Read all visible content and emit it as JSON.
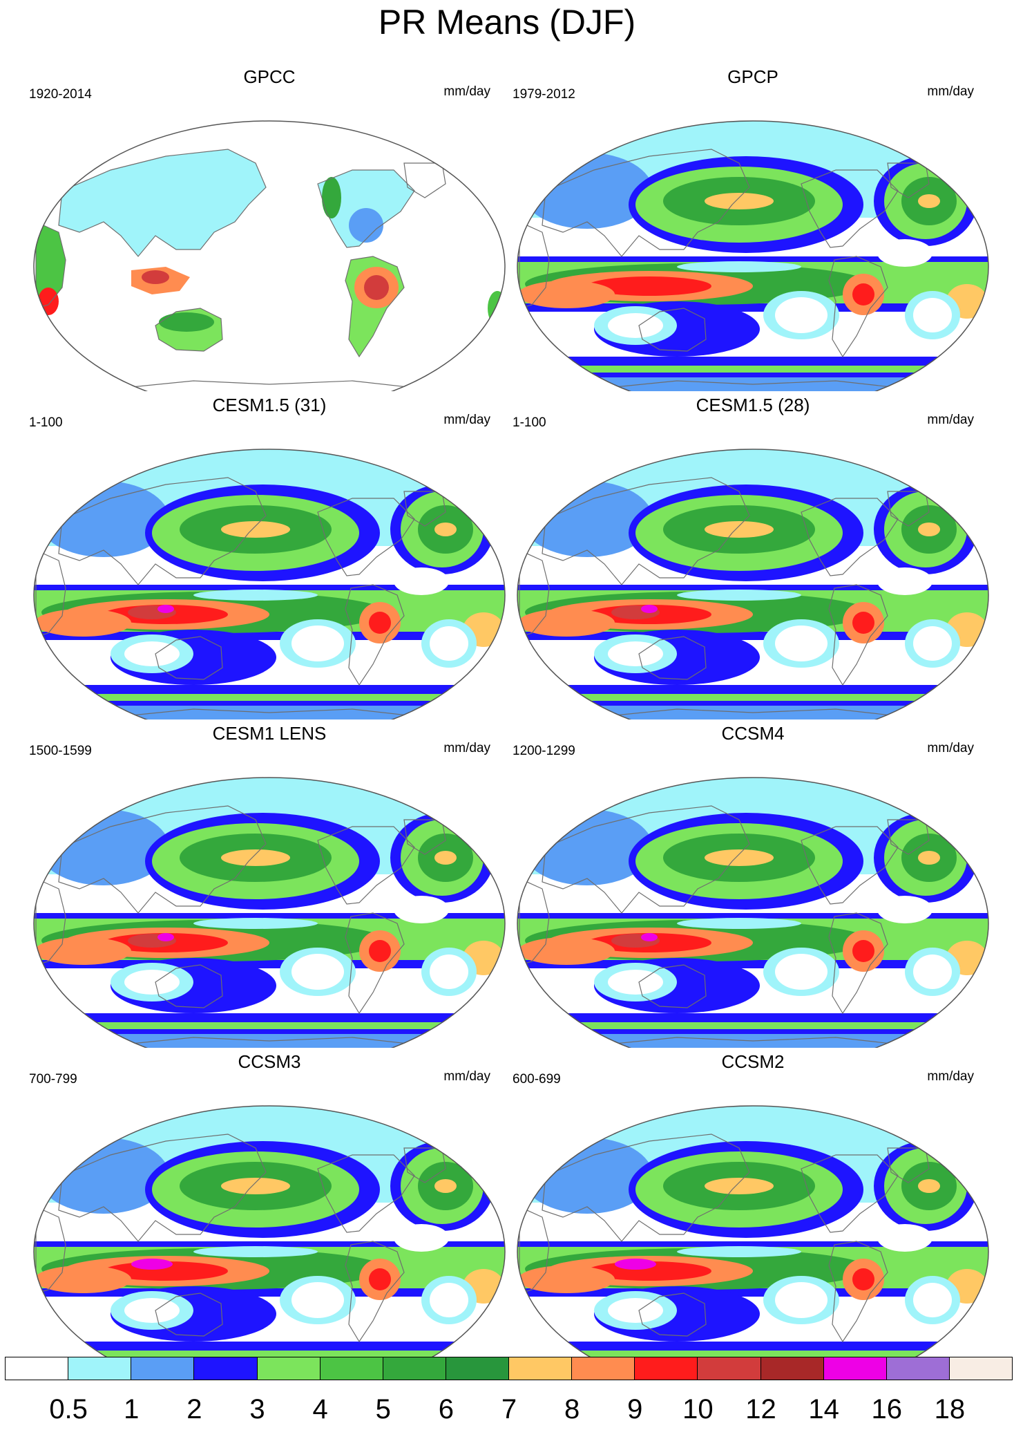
{
  "title": "PR Means (DJF)",
  "panels": [
    {
      "title": "GPCC",
      "period": "1920-2014",
      "units": "mm/day",
      "style": "obs-land"
    },
    {
      "title": "GPCP",
      "period": "1979-2012",
      "units": "mm/day",
      "style": "obs-global"
    },
    {
      "title": "CESM1.5 (31)",
      "period": "1-100",
      "units": "mm/day",
      "style": "model-a"
    },
    {
      "title": "CESM1.5 (28)",
      "period": "1-100",
      "units": "mm/day",
      "style": "model-a"
    },
    {
      "title": "CESM1 LENS",
      "period": "1500-1599",
      "units": "mm/day",
      "style": "model-b"
    },
    {
      "title": "CCSM4",
      "period": "1200-1299",
      "units": "mm/day",
      "style": "model-b"
    },
    {
      "title": "CCSM3",
      "period": "700-799",
      "units": "mm/day",
      "style": "model-c"
    },
    {
      "title": "CCSM2",
      "period": "600-699",
      "units": "mm/day",
      "style": "model-c"
    }
  ],
  "colorbar": {
    "levels": [
      "0.5",
      "1",
      "2",
      "3",
      "4",
      "5",
      "6",
      "7",
      "8",
      "9",
      "10",
      "12",
      "14",
      "16",
      "18"
    ],
    "colors": [
      "#ffffff",
      "#a0f4fa",
      "#5a9ef5",
      "#1e14ff",
      "#7ce45c",
      "#4cc444",
      "#34a83c",
      "#28963c",
      "#ffc864",
      "#ff8c50",
      "#ff1c1c",
      "#d23c3c",
      "#a82828",
      "#ee00e6",
      "#9e6ed6",
      "#f8ede4"
    ]
  }
}
